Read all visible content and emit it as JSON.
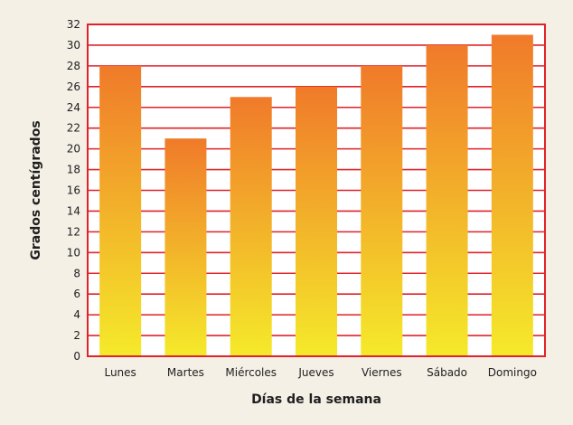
{
  "chart_data": {
    "type": "bar",
    "title": "",
    "xlabel": "Días de la semana",
    "ylabel": "Grados centígrados",
    "categories": [
      "Lunes",
      "Martes",
      "Miércoles",
      "Jueves",
      "Viernes",
      "Sábado",
      "Domingo"
    ],
    "values": [
      28,
      21,
      25,
      26,
      28,
      30,
      31
    ],
    "ylim": [
      0,
      32
    ],
    "yticks": [
      "0",
      "2",
      "4",
      "6",
      "8",
      "10",
      "12",
      "14",
      "16",
      "18",
      "20",
      "22",
      "24",
      "26",
      "28",
      "30",
      "32"
    ],
    "grid": true,
    "colors": {
      "background": "#f4f0e6",
      "plot_background": "#ffffff",
      "grid": "#e0232a",
      "bar_top": "#f07a2a",
      "bar_bottom": "#f5ea2a"
    }
  }
}
